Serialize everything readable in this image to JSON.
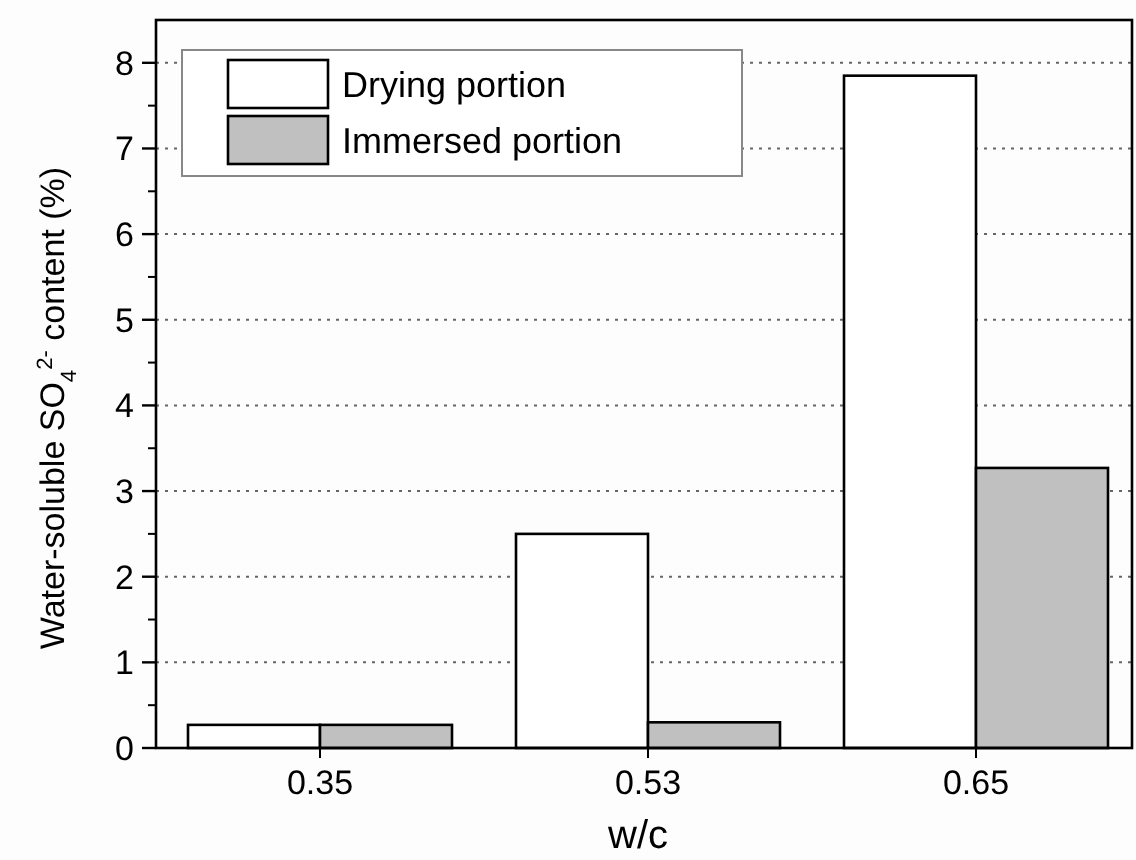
{
  "chart_data": {
    "type": "bar",
    "xlabel": "w/c",
    "ylabel": "Water-soluble SO$_{4}$$^{2-}$ content (%)",
    "categories": [
      "0.35",
      "0.53",
      "0.65"
    ],
    "series": [
      {
        "name": "Drying portion",
        "color": "#ffffff",
        "values": [
          0.27,
          2.5,
          7.85
        ]
      },
      {
        "name": "Immersed portion",
        "color": "#c0c0c0",
        "values": [
          0.27,
          0.3,
          3.27
        ]
      }
    ],
    "ylim": [
      0,
      8.5
    ],
    "yticks": [
      0,
      1,
      2,
      3,
      4,
      5,
      6,
      7,
      8
    ],
    "grid": "y",
    "legend": "top left"
  }
}
